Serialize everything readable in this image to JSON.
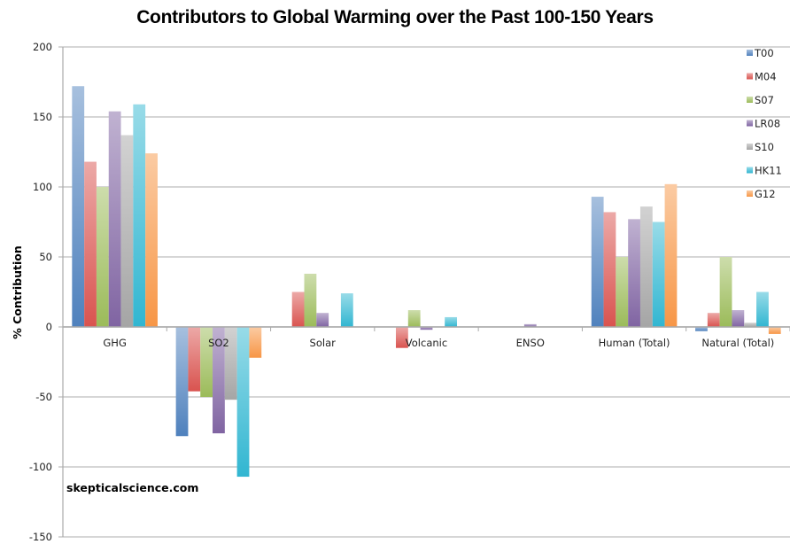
{
  "chart_data": {
    "type": "bar",
    "title": "Contributors to Global Warming over the Past 100-150 Years",
    "xlabel": "",
    "ylabel": "% Contribution",
    "ylim": [
      -150,
      200
    ],
    "yticks": [
      200,
      150,
      100,
      50,
      0,
      -50,
      -100,
      -150
    ],
    "grid": true,
    "legend_position": "top-right",
    "categories": [
      "GHG",
      "SO2",
      "Solar",
      "Volcanic",
      "ENSO",
      "Human (Total)",
      "Natural (Total)"
    ],
    "series": [
      {
        "name": "T00",
        "color": "#4f81bd",
        "values": [
          172,
          -78,
          0,
          0,
          0,
          93,
          -3
        ]
      },
      {
        "name": "M04",
        "color": "#d9534f",
        "values": [
          118,
          -46,
          25,
          -15,
          0,
          82,
          10
        ]
      },
      {
        "name": "S07",
        "color": "#9bbb59",
        "values": [
          100,
          -50,
          38,
          12,
          0,
          50,
          50
        ]
      },
      {
        "name": "LR08",
        "color": "#8064a2",
        "values": [
          154,
          -76,
          10,
          -2,
          2,
          77,
          12
        ]
      },
      {
        "name": "S10",
        "color": "#a5a5a5",
        "values": [
          137,
          -52,
          0,
          0,
          0,
          86,
          3
        ]
      },
      {
        "name": "HK11",
        "color": "#31b6d1",
        "values": [
          159,
          -107,
          24,
          7,
          0,
          75,
          25
        ]
      },
      {
        "name": "G12",
        "color": "#f79646",
        "values": [
          124,
          -22,
          0,
          0,
          0,
          102,
          -5
        ]
      }
    ]
  },
  "watermark": "skepticalscience.com"
}
